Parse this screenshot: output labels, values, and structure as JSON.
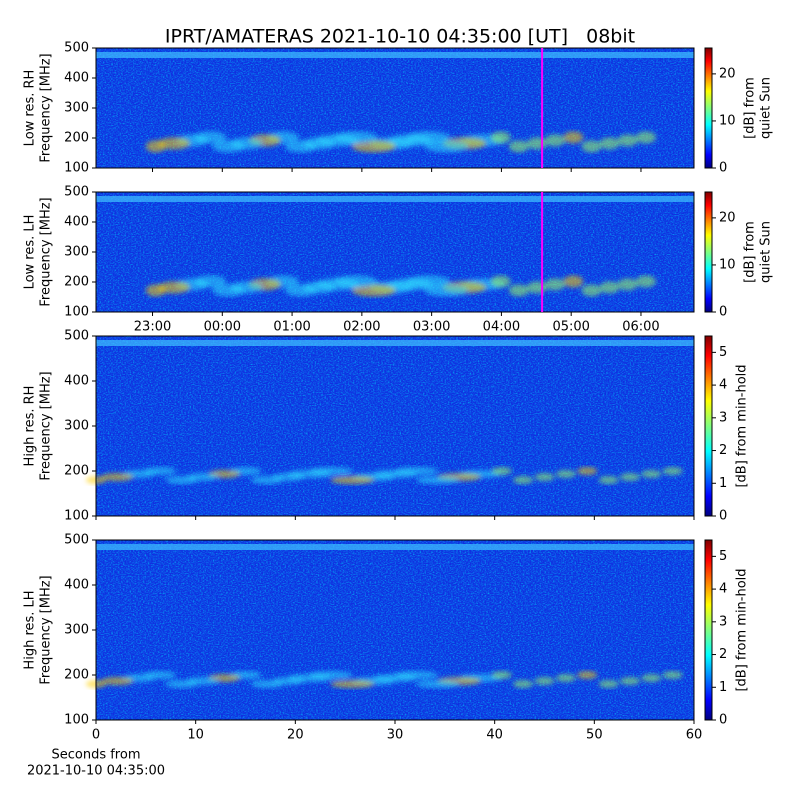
{
  "title": "IPRT/AMATERAS 2021-10-10 04:35:00 [UT]   08bit",
  "chart_data": [
    {
      "type": "heatmap",
      "ylabel": [
        "Low res. RH",
        "Frequency [MHz]"
      ],
      "ylim": [
        100,
        500
      ],
      "yticks": [
        100,
        200,
        300,
        400,
        500
      ],
      "xlim": [
        22.19,
        30.76
      ],
      "marker_x": 28.583,
      "marker_color": "#ff00ff",
      "colormap": "jet",
      "colorbar_label": [
        "[dB] from",
        "quiet Sun"
      ],
      "clim": [
        0,
        25.5
      ],
      "cticks": [
        0,
        10,
        20
      ]
    },
    {
      "type": "heatmap",
      "ylabel": [
        "Low res. LH",
        "Frequency [MHz]"
      ],
      "ylim": [
        100,
        500
      ],
      "yticks": [
        100,
        200,
        300,
        400,
        500
      ],
      "xlim": [
        22.19,
        30.76
      ],
      "xticks": [
        {
          "value": 23,
          "label": "23:00"
        },
        {
          "value": 24,
          "label": "00:00"
        },
        {
          "value": 25,
          "label": "01:00"
        },
        {
          "value": 26,
          "label": "02:00"
        },
        {
          "value": 27,
          "label": "03:00"
        },
        {
          "value": 28,
          "label": "04:00"
        },
        {
          "value": 29,
          "label": "05:00"
        },
        {
          "value": 30,
          "label": "06:00"
        }
      ],
      "marker_x": 28.583,
      "marker_color": "#ff00ff",
      "colormap": "jet",
      "colorbar_label": [
        "[dB] from",
        "quiet Sun"
      ],
      "clim": [
        0,
        25.5
      ],
      "cticks": [
        0,
        10,
        20
      ]
    },
    {
      "type": "heatmap",
      "ylabel": [
        "High res. RH",
        "Frequency [MHz]"
      ],
      "ylim": [
        100,
        500
      ],
      "yticks": [
        100,
        200,
        300,
        400,
        500
      ],
      "xlim": [
        0,
        60
      ],
      "colormap": "jet",
      "colorbar_label": [
        "[dB] from min-hold"
      ],
      "clim": [
        0,
        5.5
      ],
      "cticks": [
        0,
        1,
        2,
        3,
        4,
        5
      ]
    },
    {
      "type": "heatmap",
      "ylabel": [
        "High res. LH",
        "Frequency [MHz]"
      ],
      "ylim": [
        100,
        500
      ],
      "yticks": [
        100,
        200,
        300,
        400,
        500
      ],
      "xlim": [
        0,
        60
      ],
      "xticks": [
        0,
        10,
        20,
        30,
        40,
        50,
        60
      ],
      "xlabel": [
        "Seconds from",
        "2021-10-10 04:35:00"
      ],
      "colormap": "jet",
      "colorbar_label": [
        "[dB] from min-hold"
      ],
      "clim": [
        0,
        5.5
      ],
      "cticks": [
        0,
        1,
        2,
        3,
        4,
        5
      ]
    }
  ]
}
